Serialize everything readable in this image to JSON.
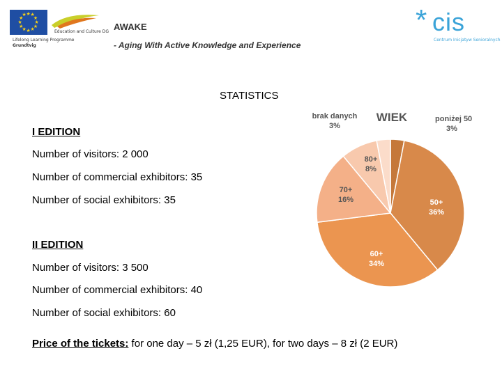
{
  "header": {
    "title": "AWAKE",
    "subtitle": "- Aging With Active Knowledge and Experience",
    "eu_logo": {
      "line1": "Education and Culture DG",
      "line2": "Lifelong Learning Programme",
      "line3": "Grundtvig"
    },
    "cis_logo": {
      "word": "cis",
      "subtitle": "Centrum Inicjatyw Senioralnych"
    }
  },
  "statistics": {
    "heading": "STATISTICS",
    "edition1": {
      "title": "I EDITION",
      "visitors": "Number of visitors: 2 000",
      "commercial": "Number of commercial exhibitors: 35",
      "social": "Number of social exhibitors: 35"
    },
    "edition2": {
      "title": "II EDITION",
      "visitors": "Number of visitors: 3 500",
      "commercial": "Number of commercial exhibitors: 40",
      "social": "Number of social exhibitors: 60"
    },
    "price_label": "Price of the tickets:",
    "price_text": " for one day – 5 zł (1,25 EUR), for two days – 8 zł (2 EUR)"
  },
  "chart_data": {
    "type": "pie",
    "title": "WIEK",
    "slices": [
      {
        "label": "poniżej 50",
        "value": 3,
        "value_label": "3%",
        "color": "#c5783a"
      },
      {
        "label": "50+",
        "value": 36,
        "value_label": "36%",
        "color": "#d8894a"
      },
      {
        "label": "60+",
        "value": 34,
        "value_label": "34%",
        "color": "#eb9550"
      },
      {
        "label": "70+",
        "value": 16,
        "value_label": "16%",
        "color": "#f4b088"
      },
      {
        "label": "80+",
        "value": 8,
        "value_label": "8%",
        "color": "#f8c9ad"
      },
      {
        "label": "brak danych",
        "value": 3,
        "value_label": "3%",
        "color": "#fbdcca"
      }
    ],
    "start": "12 o'clock",
    "direction": "clockwise"
  }
}
